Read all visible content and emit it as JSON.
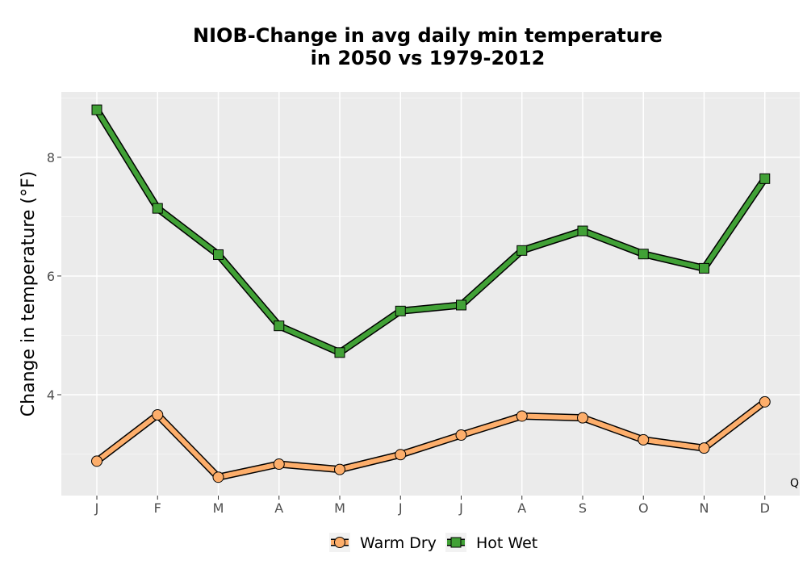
{
  "chart_data": {
    "type": "line",
    "title": [
      "NIOB-Change in avg daily min temperature",
      "in 2050 vs 1979-2012"
    ],
    "xlabel": "",
    "ylabel": "Change in temperature (°F)",
    "categories": [
      "J",
      "F",
      "M",
      "A",
      "M",
      "J",
      "J",
      "A",
      "S",
      "O",
      "N",
      "D"
    ],
    "ylim": [
      2.3,
      9.1
    ],
    "yticks": [
      4,
      6,
      8
    ],
    "grid": true,
    "legend_position": "bottom",
    "corner_label": "Q",
    "series": [
      {
        "name": "Warm Dry",
        "marker": "circle",
        "color": "#fdae6b",
        "values": [
          2.88,
          3.66,
          2.61,
          2.83,
          2.74,
          2.99,
          3.32,
          3.64,
          3.61,
          3.24,
          3.1,
          3.88
        ]
      },
      {
        "name": "Hot Wet",
        "marker": "square",
        "color": "#41a136",
        "values": [
          8.8,
          7.14,
          6.36,
          5.16,
          4.71,
          5.41,
          5.51,
          6.43,
          6.76,
          6.37,
          6.13,
          7.64
        ]
      }
    ]
  }
}
